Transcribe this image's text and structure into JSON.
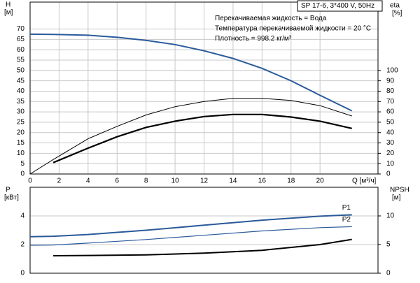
{
  "chart_data": [
    {
      "type": "line",
      "ylabel": "H",
      "yunit": "[м]",
      "y2label": "eta",
      "y2unit": "[%]",
      "xlabel": "Q [м³/ч]",
      "annotations": [
        "SP 17-6, 3*400 V, 50Hz",
        "Перекачиваемая жидкость = Вода",
        "Температура перекачиваемой жидкости = 20 °C",
        "Плотность = 998.2 кг/м³"
      ],
      "x": [
        0,
        1.6,
        4,
        6,
        8,
        10,
        12,
        14,
        16,
        18,
        20,
        22.2
      ],
      "xlim": [
        0,
        24
      ],
      "xticks": [
        0,
        2,
        4,
        6,
        8,
        10,
        12,
        14,
        16,
        18,
        20
      ],
      "ylim": [
        0,
        83
      ],
      "yticks": [
        0,
        5,
        10,
        15,
        20,
        25,
        30,
        35,
        40,
        45,
        50,
        55,
        60,
        65,
        70
      ],
      "y2lim": [
        0,
        166
      ],
      "y2ticks": [
        0,
        10,
        20,
        30,
        40,
        50,
        60,
        70,
        80,
        90,
        100
      ],
      "grid": true,
      "series": [
        {
          "color": "#2a5a9a",
          "line_width": 2,
          "values": [
            67.5,
            67.4,
            67,
            66,
            64.5,
            62.5,
            59.5,
            55.8,
            51,
            45,
            38,
            30.5
          ]
        },
        {
          "color": "#000000",
          "line_width": 1,
          "axis": "y2",
          "values": [
            0,
            14,
            34,
            46,
            57,
            65,
            70,
            73,
            73,
            71,
            66,
            56
          ]
        },
        {
          "color": "#000000",
          "line_width": 2.2,
          "axis": "y2",
          "values": [
            null,
            11,
            25,
            36,
            45,
            51,
            55.5,
            57.5,
            57.5,
            55,
            51,
            44
          ]
        }
      ]
    },
    {
      "type": "line",
      "ylabel": "P",
      "yunit": "[кВт]",
      "y2label": "NPSH",
      "y2unit": "[м]",
      "x": [
        0,
        1.6,
        4,
        8,
        12,
        16,
        20,
        22.2
      ],
      "xlim": [
        0,
        24
      ],
      "ylim": [
        0,
        6
      ],
      "yticks": [
        0,
        2,
        4
      ],
      "y2lim": [
        0,
        15
      ],
      "y2ticks": [
        0,
        5,
        10
      ],
      "grid": true,
      "series": [
        {
          "name": "P1",
          "color": "#2a5a9a",
          "line_width": 2,
          "values": [
            2.55,
            2.58,
            2.7,
            3.0,
            3.35,
            3.7,
            3.98,
            4.08
          ]
        },
        {
          "name": "P2",
          "color": "#2a5a9a",
          "line_width": 1.2,
          "values": [
            1.95,
            1.97,
            2.1,
            2.35,
            2.65,
            2.95,
            3.18,
            3.25
          ]
        },
        {
          "color": "#000000",
          "line_width": 2,
          "axis": "y2",
          "values": [
            null,
            3.05,
            3.1,
            3.2,
            3.5,
            4.0,
            5.0,
            5.9
          ]
        }
      ]
    }
  ]
}
